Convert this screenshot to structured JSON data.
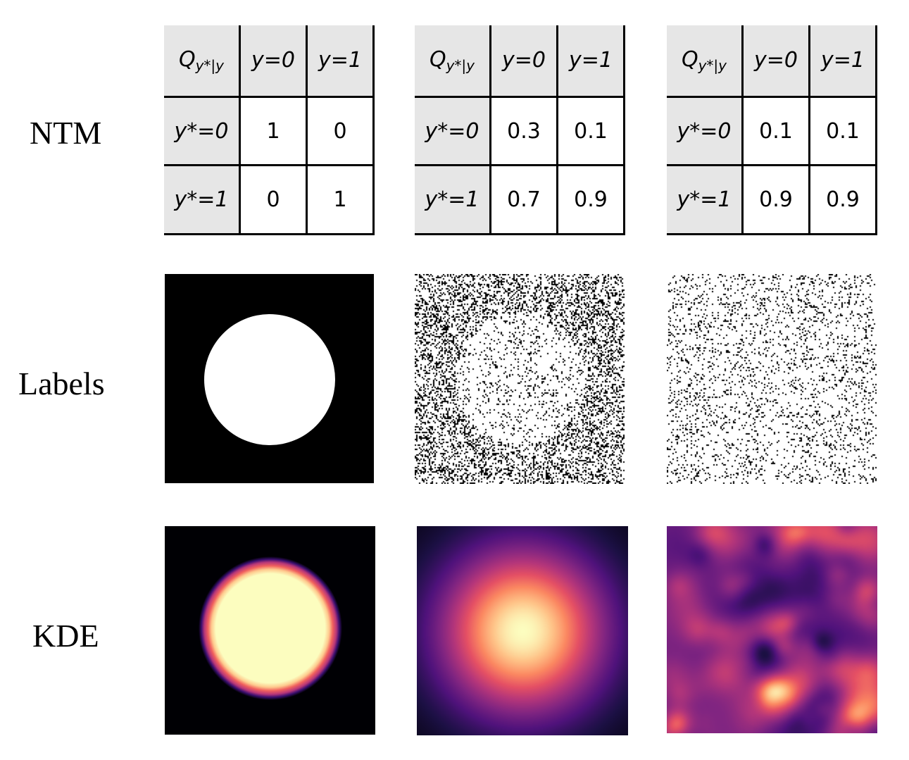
{
  "row_labels": {
    "ntm": "NTM",
    "labels": "Labels",
    "kde": "KDE"
  },
  "ntm_header": {
    "q_symbol": "Q",
    "q_subscript": "y*|y",
    "col0": "y=0",
    "col1": "y=1"
  },
  "ntm_tables": [
    {
      "rows": [
        {
          "label": "y*=0",
          "v0": "1",
          "v1": "0"
        },
        {
          "label": "y*=1",
          "v0": "0",
          "v1": "1"
        }
      ]
    },
    {
      "rows": [
        {
          "label": "y*=0",
          "v0": "0.3",
          "v1": "0.1"
        },
        {
          "label": "y*=1",
          "v0": "0.7",
          "v1": "0.9"
        }
      ]
    },
    {
      "rows": [
        {
          "label": "y*=0",
          "v0": "0.1",
          "v1": "0.1"
        },
        {
          "label": "y*=1",
          "v0": "0.9",
          "v1": "0.9"
        }
      ]
    }
  ],
  "colors": {
    "black": "#000000",
    "white": "#ffffff",
    "header_gray": "#e6e6e6"
  }
}
